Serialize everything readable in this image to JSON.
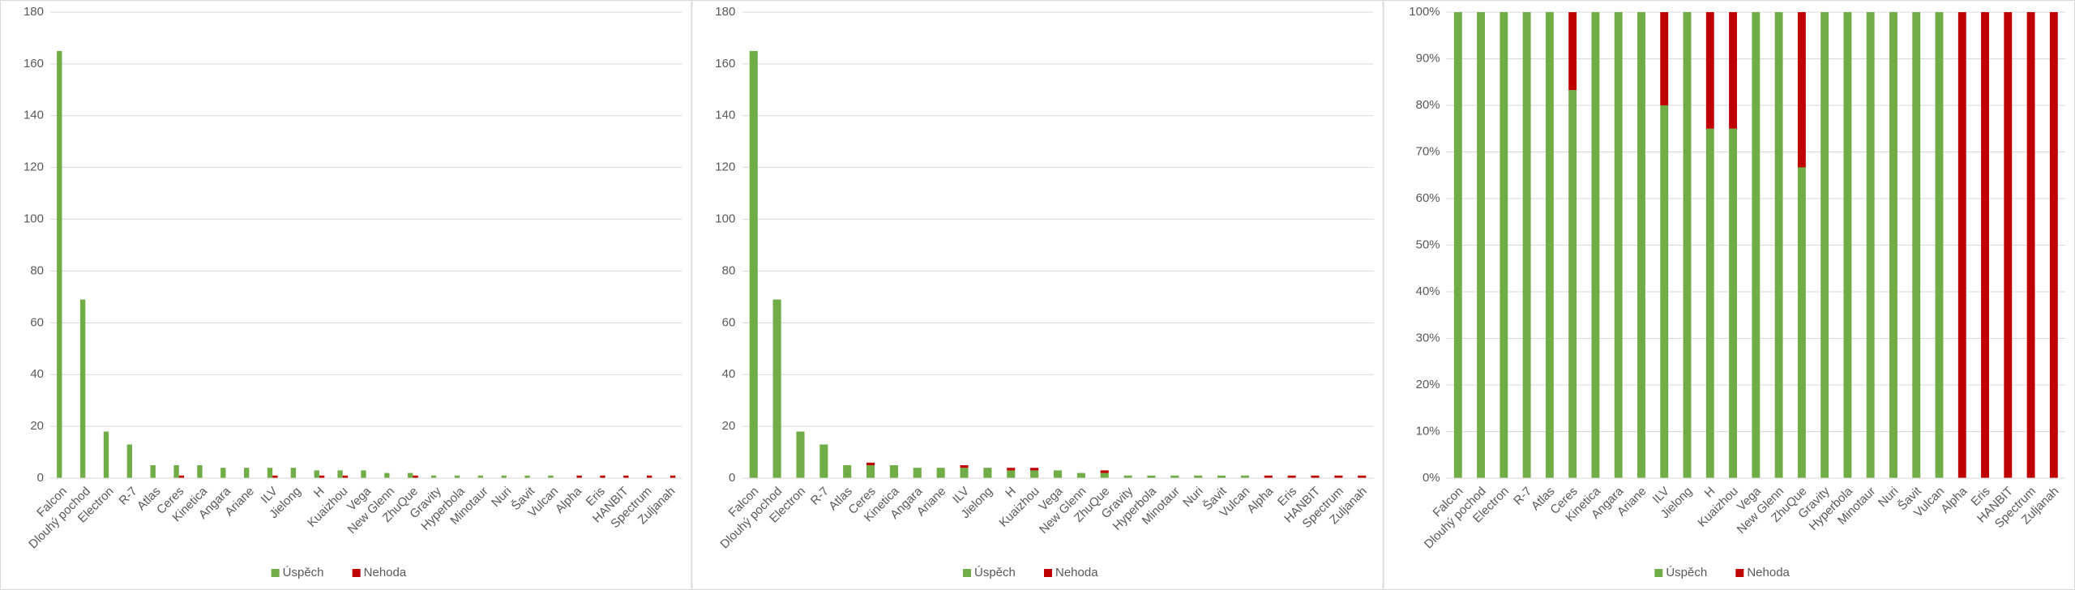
{
  "chart_data": [
    {
      "type": "bar",
      "categories": [
        "Falcon",
        "Dlouhý pochod",
        "Electron",
        "R-7",
        "Atlas",
        "Ceres",
        "Kinetica",
        "Angara",
        "Ariane",
        "ILV",
        "Jielong",
        "H",
        "Kuaizhou",
        "Vega",
        "New Glenn",
        "ZhuQue",
        "Gravity",
        "Hyperbola",
        "Minotaur",
        "Nuri",
        "Šavit",
        "Vulcan",
        "Alpha",
        "Eris",
        "HANBIT",
        "Spectrum",
        "Zuljanah"
      ],
      "series": [
        {
          "name": "Úspěch",
          "color": "#70ad47",
          "values": [
            165,
            69,
            18,
            13,
            5,
            5,
            5,
            4,
            4,
            4,
            4,
            3,
            3,
            3,
            2,
            2,
            1,
            1,
            1,
            1,
            1,
            1,
            0,
            0,
            0,
            0,
            0
          ]
        },
        {
          "name": "Nehoda",
          "color": "#c00000",
          "values": [
            0,
            0,
            0,
            0,
            0,
            1,
            0,
            0,
            0,
            1,
            0,
            1,
            1,
            0,
            0,
            1,
            0,
            0,
            0,
            0,
            0,
            0,
            1,
            1,
            1,
            1,
            1
          ]
        }
      ],
      "ylim": [
        0,
        180
      ],
      "yticks": [
        0,
        20,
        40,
        60,
        80,
        100,
        120,
        140,
        160,
        180
      ],
      "grid": true,
      "legend": "bottom"
    },
    {
      "type": "stacked_bar",
      "categories": [
        "Falcon",
        "Dlouhý pochod",
        "Electron",
        "R-7",
        "Atlas",
        "Ceres",
        "Kinetica",
        "Angara",
        "Ariane",
        "ILV",
        "Jielong",
        "H",
        "Kuaizhou",
        "Vega",
        "New Glenn",
        "ZhuQue",
        "Gravity",
        "Hyperbola",
        "Minotaur",
        "Nuri",
        "Šavit",
        "Vulcan",
        "Alpha",
        "Eris",
        "HANBIT",
        "Spectrum",
        "Zuljanah"
      ],
      "series": [
        {
          "name": "Úspěch",
          "color": "#70ad47",
          "values": [
            165,
            69,
            18,
            13,
            5,
            5,
            5,
            4,
            4,
            4,
            4,
            3,
            3,
            3,
            2,
            2,
            1,
            1,
            1,
            1,
            1,
            1,
            0,
            0,
            0,
            0,
            0
          ]
        },
        {
          "name": "Nehoda",
          "color": "#c00000",
          "values": [
            0,
            0,
            0,
            0,
            0,
            1,
            0,
            0,
            0,
            1,
            0,
            1,
            1,
            0,
            0,
            1,
            0,
            0,
            0,
            0,
            0,
            0,
            1,
            1,
            1,
            1,
            1
          ]
        }
      ],
      "ylim": [
        0,
        180
      ],
      "yticks": [
        0,
        20,
        40,
        60,
        80,
        100,
        120,
        140,
        160,
        180
      ],
      "grid": true,
      "legend": "bottom"
    },
    {
      "type": "stacked_bar",
      "categories": [
        "Falcon",
        "Dlouhý pochod",
        "Electron",
        "R-7",
        "Atlas",
        "Ceres",
        "Kinetica",
        "Angara",
        "Ariane",
        "ILV",
        "Jielong",
        "H",
        "Kuaizhou",
        "Vega",
        "New Glenn",
        "ZhuQue",
        "Gravity",
        "Hyperbola",
        "Minotaur",
        "Nuri",
        "Šavit",
        "Vulcan",
        "Alpha",
        "Eris",
        "HANBIT",
        "Spectrum",
        "Zuljanah"
      ],
      "series": [
        {
          "name": "Úspěch",
          "color": "#70ad47",
          "values": [
            100,
            100,
            100,
            100,
            100,
            83.3,
            100,
            100,
            100,
            80,
            100,
            75,
            75,
            100,
            100,
            66.7,
            100,
            100,
            100,
            100,
            100,
            100,
            0,
            0,
            0,
            0,
            0
          ]
        },
        {
          "name": "Nehoda",
          "color": "#c00000",
          "values": [
            0,
            0,
            0,
            0,
            0,
            16.7,
            0,
            0,
            0,
            20,
            0,
            25,
            25,
            0,
            0,
            33.3,
            0,
            0,
            0,
            0,
            0,
            0,
            100,
            100,
            100,
            100,
            100
          ]
        }
      ],
      "ylim": [
        0,
        100
      ],
      "yticks": [
        {
          "value": 0,
          "label": "0%"
        },
        {
          "value": 10,
          "label": "10%"
        },
        {
          "value": 20,
          "label": "20%"
        },
        {
          "value": 30,
          "label": "30%"
        },
        {
          "value": 40,
          "label": "40%"
        },
        {
          "value": 50,
          "label": "50%"
        },
        {
          "value": 60,
          "label": "60%"
        },
        {
          "value": 70,
          "label": "70%"
        },
        {
          "value": 80,
          "label": "80%"
        },
        {
          "value": 90,
          "label": "90%"
        },
        {
          "value": 100,
          "label": "100%"
        }
      ],
      "grid": true,
      "legend": "bottom"
    }
  ]
}
